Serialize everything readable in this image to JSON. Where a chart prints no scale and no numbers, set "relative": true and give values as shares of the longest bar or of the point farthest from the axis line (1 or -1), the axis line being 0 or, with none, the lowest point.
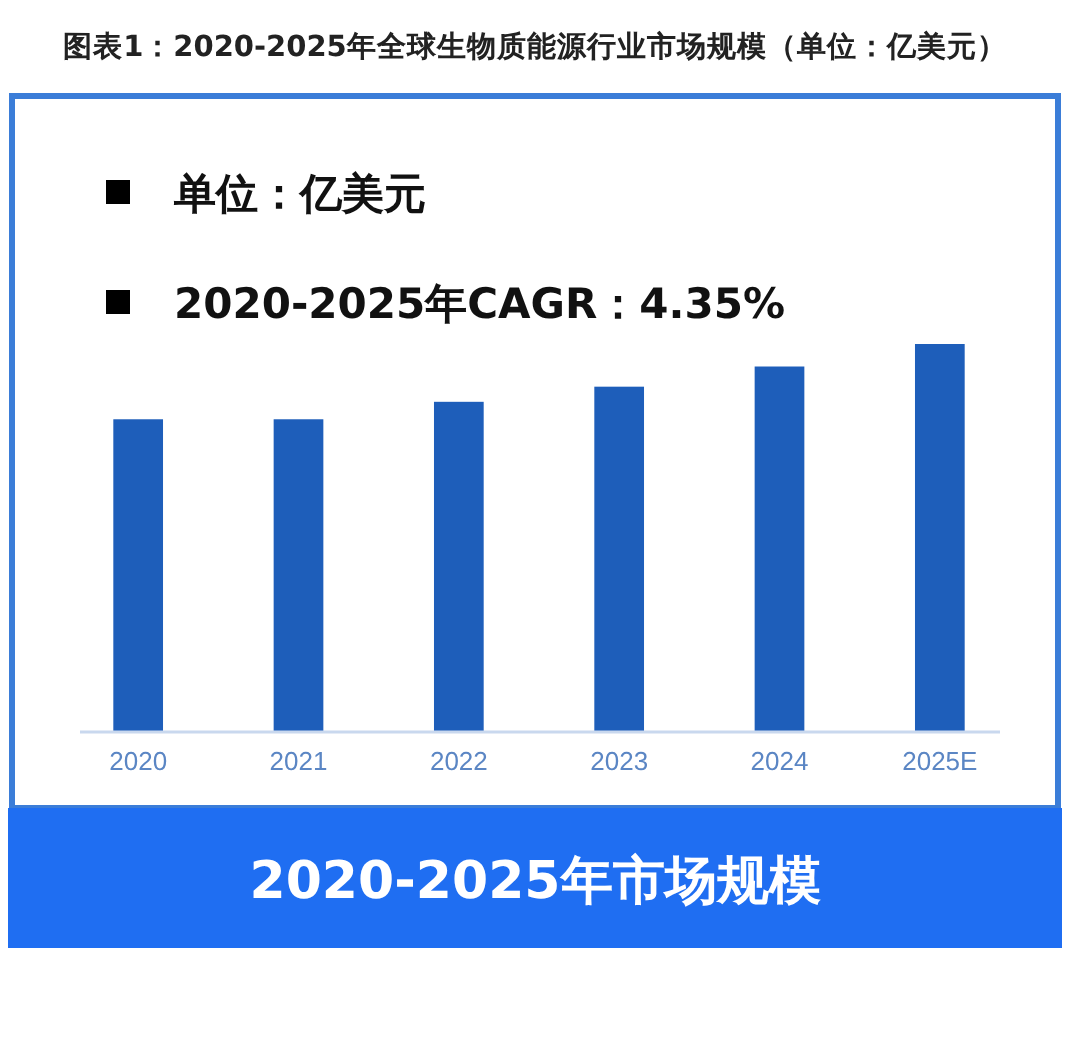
{
  "chart_data": {
    "type": "bar",
    "title": "图表1：2020-2025年全球生物质能源行业市场规模（单位：亿美元）",
    "categories": [
      "2020",
      "2021",
      "2022",
      "2023",
      "2024",
      "2025E"
    ],
    "values": [
      0.806,
      0.806,
      0.851,
      0.89,
      0.942,
      1
    ],
    "color": "#1e5eba",
    "relative": true,
    "xlabel": "2020-2025年市场规模",
    "annotations": [
      "单位：亿美元",
      "2020-2025年CAGR：4.35%"
    ]
  }
}
